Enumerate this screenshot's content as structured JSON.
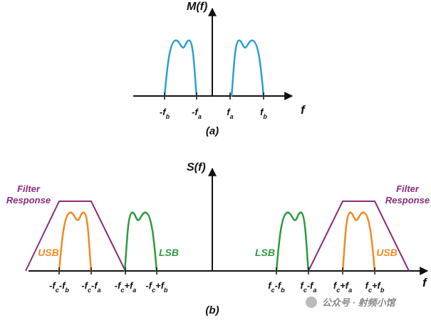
{
  "panel_a": {
    "y_label": "M(f)",
    "x_label": "f",
    "caption": "(a)",
    "ticks": [
      [
        "-f",
        "b"
      ],
      [
        "-f",
        "a"
      ],
      [
        "f",
        "a"
      ],
      [
        "f",
        "b"
      ]
    ]
  },
  "panel_b": {
    "y_label": "S(f)",
    "x_label": "f",
    "caption": "(b)",
    "ticks": [
      [
        "-f",
        "c",
        "-f",
        "b"
      ],
      [
        "-f",
        "c",
        "-f",
        "a"
      ],
      [
        "-f",
        "c",
        "+f",
        "a"
      ],
      [
        "-f",
        "c",
        "+f",
        "b"
      ],
      [
        "f",
        "c",
        "-f",
        "b"
      ],
      [
        "f",
        "c",
        "-f",
        "a"
      ],
      [
        "f",
        "c",
        "+f",
        "a"
      ],
      [
        "f",
        "c",
        "+f",
        "b"
      ]
    ],
    "filter_labels": [
      [
        "Filter",
        "Response"
      ],
      [
        "Filter",
        "Response"
      ]
    ],
    "band_labels": [
      "USB",
      "LSB",
      "LSB",
      "USB"
    ]
  },
  "watermark": "公众号 · 射频小馆"
}
